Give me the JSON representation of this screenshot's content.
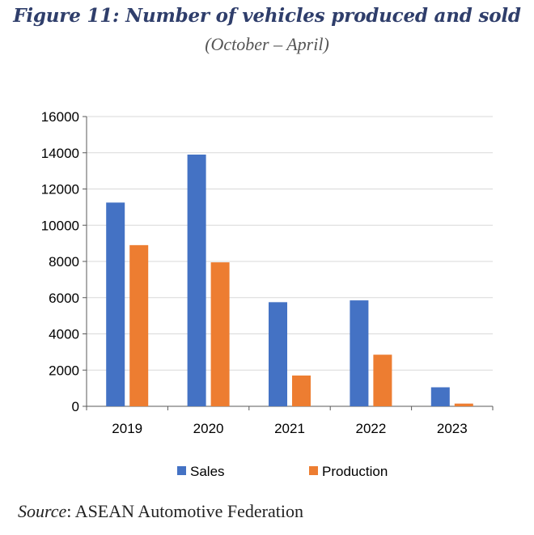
{
  "figure": {
    "title": "Figure 11: Number of vehicles produced and sold",
    "subtitle": "(October – April)"
  },
  "chart_data": {
    "type": "bar",
    "title": "Figure 11: Number of vehicles produced and sold",
    "subtitle": "(October – April)",
    "categories": [
      "2019",
      "2020",
      "2021",
      "2022",
      "2023"
    ],
    "series": [
      {
        "name": "Sales",
        "color": "#4472c4",
        "values": [
          11250,
          13900,
          5750,
          5850,
          1050
        ]
      },
      {
        "name": "Production",
        "color": "#ed7d31",
        "values": [
          8900,
          7950,
          1700,
          2850,
          150
        ]
      }
    ],
    "ylim": [
      0,
      16000
    ],
    "yticks": [
      "0",
      "2000",
      "4000",
      "6000",
      "8000",
      "10000",
      "12000",
      "14000",
      "16000"
    ],
    "xlabel": "",
    "ylabel": "",
    "grid": true,
    "legend": "bottom"
  },
  "source": {
    "label": "Source",
    "text": ": ASEAN Automotive Federation"
  }
}
